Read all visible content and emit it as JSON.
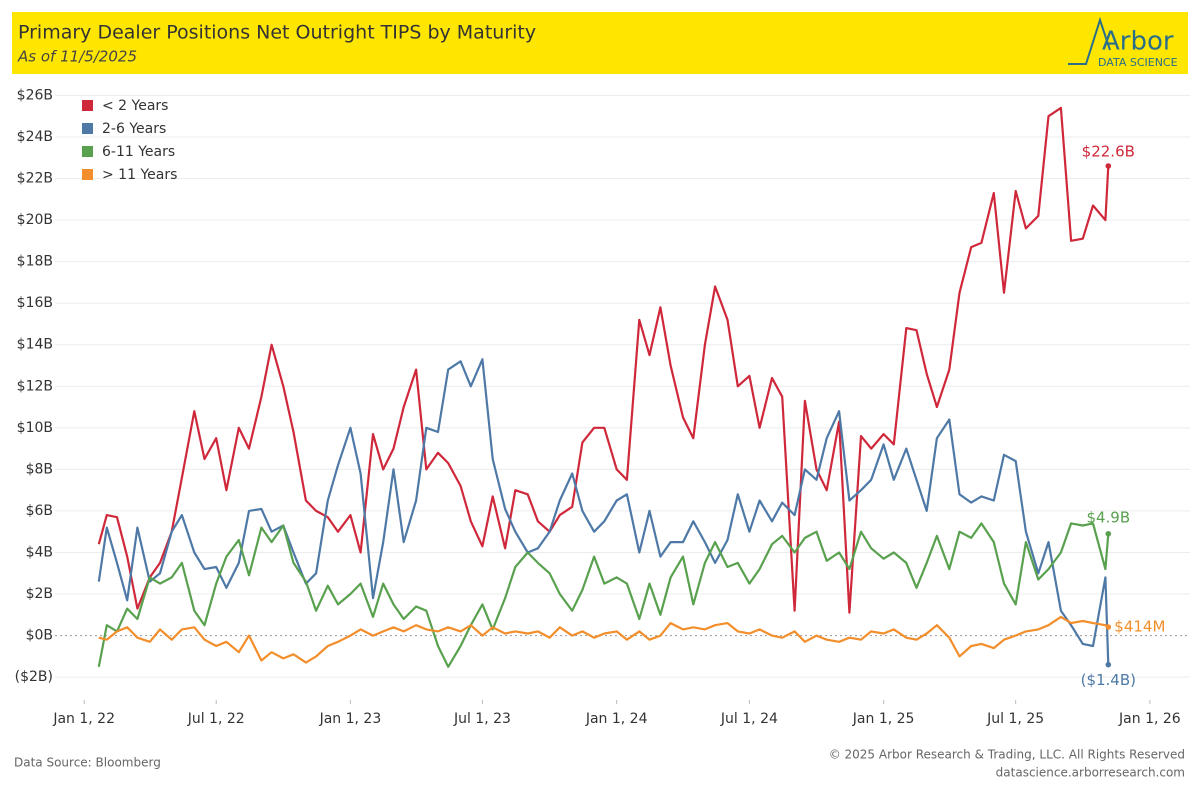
{
  "chart_data": {
    "type": "line",
    "title": "Primary Dealer Positions Net Outright TIPS by Maturity",
    "subtitle": "As of 11/5/2025",
    "brand": "Arbor",
    "brand_tagline": "DATA SCIENCE",
    "source": "Data Source: Bloomberg",
    "copyright": "© 2025 Arbor Research & Trading, LLC. All Rights Reserved",
    "website": "datascience.arborresearch.com",
    "grid": true,
    "legend": "top-left",
    "x": [
      "2022-01-21",
      "2022-02-01",
      "2022-02-15",
      "2022-03-01",
      "2022-03-15",
      "2022-04-01",
      "2022-04-15",
      "2022-05-01",
      "2022-05-15",
      "2022-06-01",
      "2022-06-15",
      "2022-07-01",
      "2022-07-15",
      "2022-08-01",
      "2022-08-15",
      "2022-09-01",
      "2022-09-15",
      "2022-10-01",
      "2022-10-15",
      "2022-11-01",
      "2022-11-15",
      "2022-12-01",
      "2022-12-15",
      "2023-01-01",
      "2023-01-15",
      "2023-02-01",
      "2023-02-15",
      "2023-03-01",
      "2023-03-15",
      "2023-04-01",
      "2023-04-15",
      "2023-05-01",
      "2023-05-15",
      "2023-06-01",
      "2023-06-15",
      "2023-07-01",
      "2023-07-15",
      "2023-08-01",
      "2023-08-15",
      "2023-09-01",
      "2023-09-15",
      "2023-10-01",
      "2023-10-15",
      "2023-11-01",
      "2023-11-15",
      "2023-12-01",
      "2023-12-15",
      "2024-01-01",
      "2024-01-15",
      "2024-02-01",
      "2024-02-15",
      "2024-03-01",
      "2024-03-15",
      "2024-04-01",
      "2024-04-15",
      "2024-05-01",
      "2024-05-15",
      "2024-06-01",
      "2024-06-15",
      "2024-07-01",
      "2024-07-15",
      "2024-08-01",
      "2024-08-15",
      "2024-09-01",
      "2024-09-15",
      "2024-10-01",
      "2024-10-15",
      "2024-11-01",
      "2024-11-15",
      "2024-12-01",
      "2024-12-15",
      "2025-01-01",
      "2025-01-15",
      "2025-02-01",
      "2025-02-15",
      "2025-03-01",
      "2025-03-15",
      "2025-04-01",
      "2025-04-15",
      "2025-05-01",
      "2025-05-15",
      "2025-06-01",
      "2025-06-15",
      "2025-07-01",
      "2025-07-15",
      "2025-08-01",
      "2025-08-15",
      "2025-09-01",
      "2025-09-15",
      "2025-10-01",
      "2025-10-15",
      "2025-11-01",
      "2025-11-05"
    ],
    "xlim": [
      "2021-11-22",
      "2026-02-25"
    ],
    "xticks": [
      {
        "value": "2022-01-01",
        "label": "Jan 1, 22"
      },
      {
        "value": "2022-07-01",
        "label": "Jul 1, 22"
      },
      {
        "value": "2023-01-01",
        "label": "Jan 1, 23"
      },
      {
        "value": "2023-07-01",
        "label": "Jul 1, 23"
      },
      {
        "value": "2024-01-01",
        "label": "Jan 1, 24"
      },
      {
        "value": "2024-07-01",
        "label": "Jul 1, 24"
      },
      {
        "value": "2025-01-01",
        "label": "Jan 1, 25"
      },
      {
        "value": "2025-07-01",
        "label": "Jul 1, 25"
      },
      {
        "value": "2026-01-01",
        "label": "Jan 1, 26"
      }
    ],
    "ylim": [
      -3.1,
      26.5
    ],
    "yticks": [
      {
        "value": -2,
        "label": "($2B)"
      },
      {
        "value": 0,
        "label": "$0B"
      },
      {
        "value": 2,
        "label": "$2B"
      },
      {
        "value": 4,
        "label": "$4B"
      },
      {
        "value": 6,
        "label": "$6B"
      },
      {
        "value": 8,
        "label": "$8B"
      },
      {
        "value": 10,
        "label": "$10B"
      },
      {
        "value": 12,
        "label": "$12B"
      },
      {
        "value": 14,
        "label": "$14B"
      },
      {
        "value": 16,
        "label": "$16B"
      },
      {
        "value": 18,
        "label": "$18B"
      },
      {
        "value": 20,
        "label": "$20B"
      },
      {
        "value": 22,
        "label": "$22B"
      },
      {
        "value": 24,
        "label": "$24B"
      },
      {
        "value": 26,
        "label": "$26B"
      }
    ],
    "series": [
      {
        "name": "< 2 Years",
        "color": "#d0283b",
        "values": [
          4.4,
          5.8,
          5.7,
          3.8,
          1.3,
          2.8,
          3.5,
          5.0,
          7.6,
          10.8,
          8.5,
          9.5,
          7.0,
          10.0,
          9.0,
          11.5,
          14.0,
          12.0,
          9.8,
          6.5,
          6.0,
          5.7,
          5.0,
          5.8,
          4.0,
          9.7,
          8.0,
          9.0,
          11.0,
          12.8,
          8.0,
          8.8,
          8.3,
          7.2,
          5.5,
          4.3,
          6.7,
          4.2,
          7.0,
          6.8,
          5.5,
          5.0,
          5.8,
          6.2,
          9.3,
          10.0,
          10.0,
          8.0,
          7.5,
          15.2,
          13.5,
          15.8,
          13.0,
          10.5,
          9.5,
          14.0,
          16.8,
          15.2,
          12.0,
          12.5,
          10.0,
          12.4,
          11.5,
          1.2,
          11.3,
          8.0,
          7.0,
          10.3,
          1.1,
          9.6,
          9.0,
          9.7,
          9.2,
          14.8,
          14.7,
          12.6,
          11.0,
          12.8,
          16.5,
          18.7,
          18.9,
          21.3,
          16.5,
          21.4,
          19.6,
          20.2,
          25.0,
          25.4,
          19.0,
          19.1,
          20.7,
          20.0,
          22.6
        ],
        "value_labels": {
          "92": "$22.6B"
        }
      },
      {
        "name": "2-6 Years",
        "color": "#4e79a7",
        "values": [
          2.6,
          5.2,
          3.5,
          1.7,
          5.2,
          2.6,
          3.0,
          5.0,
          5.8,
          4.0,
          3.2,
          3.3,
          2.3,
          3.5,
          6.0,
          6.1,
          5.0,
          5.3,
          4.0,
          2.5,
          3.0,
          6.5,
          8.2,
          10.0,
          7.8,
          1.8,
          4.5,
          8.0,
          4.5,
          6.5,
          10.0,
          9.8,
          12.8,
          13.2,
          12.0,
          13.3,
          8.5,
          6.1,
          5.0,
          4.0,
          4.2,
          5.0,
          6.5,
          7.8,
          6.0,
          5.0,
          5.5,
          6.5,
          6.8,
          4.0,
          6.0,
          3.8,
          4.5,
          4.5,
          5.5,
          4.5,
          3.5,
          4.6,
          6.8,
          5.0,
          6.5,
          5.5,
          6.4,
          5.8,
          8.0,
          7.5,
          9.5,
          10.8,
          6.5,
          7.0,
          7.5,
          9.2,
          7.5,
          9.0,
          7.5,
          6.0,
          9.5,
          10.4,
          6.8,
          6.4,
          6.7,
          6.5,
          8.7,
          8.4,
          5.0,
          3.0,
          4.5,
          1.2,
          0.5,
          -0.4,
          -0.5,
          2.8,
          -1.4
        ],
        "value_labels": {
          "92": "($1.4B)"
        }
      },
      {
        "name": "6-11 Years",
        "color": "#59a14f",
        "values": [
          -1.5,
          0.5,
          0.2,
          1.3,
          0.8,
          2.8,
          2.5,
          2.8,
          3.5,
          1.2,
          0.5,
          2.5,
          3.8,
          4.6,
          2.9,
          5.2,
          4.5,
          5.3,
          3.5,
          2.6,
          1.2,
          2.4,
          1.5,
          2.0,
          2.5,
          0.9,
          2.5,
          1.5,
          0.8,
          1.4,
          1.2,
          -0.5,
          -1.5,
          -0.5,
          0.5,
          1.5,
          0.3,
          1.8,
          3.3,
          4.0,
          3.5,
          3.0,
          2.0,
          1.2,
          2.2,
          3.8,
          2.5,
          2.8,
          2.5,
          0.8,
          2.5,
          1.0,
          2.8,
          3.8,
          1.5,
          3.5,
          4.5,
          3.3,
          3.5,
          2.5,
          3.2,
          4.4,
          4.8,
          4.0,
          4.7,
          5.0,
          3.6,
          4.0,
          3.2,
          5.0,
          4.2,
          3.7,
          4.0,
          3.5,
          2.3,
          3.5,
          4.8,
          3.2,
          5.0,
          4.7,
          5.4,
          4.5,
          2.5,
          1.5,
          4.5,
          2.7,
          3.2,
          4.0,
          5.4,
          5.3,
          5.4,
          3.2,
          4.9
        ],
        "value_labels": {
          "92": "$4.9B"
        }
      },
      {
        "name": "> 11 Years",
        "color": "#f28e2b",
        "values": [
          -0.1,
          -0.2,
          0.2,
          0.4,
          -0.1,
          -0.3,
          0.3,
          -0.2,
          0.3,
          0.4,
          -0.2,
          -0.5,
          -0.3,
          -0.8,
          0.0,
          -1.2,
          -0.8,
          -1.1,
          -0.9,
          -1.3,
          -1.0,
          -0.5,
          -0.3,
          0.0,
          0.3,
          0.0,
          0.2,
          0.4,
          0.2,
          0.5,
          0.3,
          0.2,
          0.4,
          0.2,
          0.5,
          0.0,
          0.4,
          0.1,
          0.2,
          0.1,
          0.2,
          -0.1,
          0.4,
          0.0,
          0.2,
          -0.1,
          0.1,
          0.2,
          -0.2,
          0.2,
          -0.2,
          0.0,
          0.6,
          0.3,
          0.4,
          0.3,
          0.5,
          0.6,
          0.2,
          0.1,
          0.3,
          0.0,
          -0.1,
          0.2,
          -0.3,
          0.0,
          -0.2,
          -0.3,
          -0.1,
          -0.2,
          0.2,
          0.1,
          0.3,
          -0.1,
          -0.2,
          0.1,
          0.5,
          -0.1,
          -1.0,
          -0.5,
          -0.4,
          -0.6,
          -0.2,
          0.0,
          0.2,
          0.3,
          0.5,
          0.9,
          0.6,
          0.7,
          0.6,
          0.5,
          0.414
        ],
        "value_labels": {
          "92": "$414M"
        }
      }
    ]
  }
}
